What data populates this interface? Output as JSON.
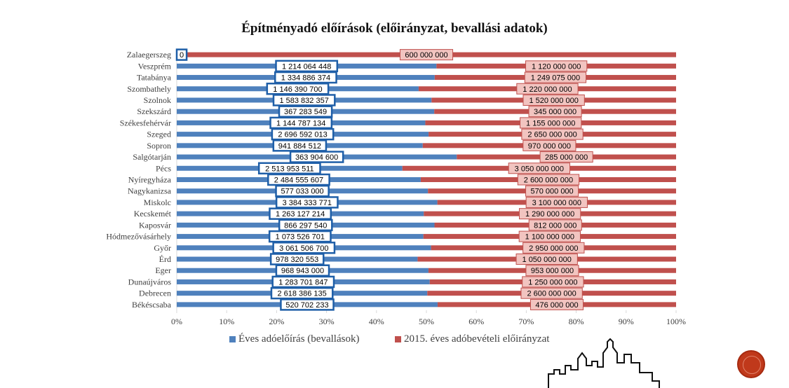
{
  "chart_data": {
    "type": "bar",
    "stacked_percent": true,
    "orientation": "horizontal",
    "title": "Építményadó előírások (előirányzat, bevallási adatok)",
    "categories": [
      "Zalaegerszeg",
      "Veszprém",
      "Tatabánya",
      "Szombathely",
      "Szolnok",
      "Szekszárd",
      "Székesfehérvár",
      "Szeged",
      "Sopron",
      "Salgótarján",
      "Pécs",
      "Nyíregyháza",
      "Nagykanizsa",
      "Miskolc",
      "Kecskemét",
      "Kaposvár",
      "Hódmezővásárhely",
      "Győr",
      "Érd",
      "Eger",
      "Dunaújváros",
      "Debrecen",
      "Békéscsaba"
    ],
    "series": [
      {
        "name": "Éves adóelőírás (bevallások)",
        "color": "#4f81bd",
        "values": [
          0,
          1214064448,
          1334886374,
          1146390700,
          1583832357,
          367283549,
          1144787134,
          2696592013,
          941884512,
          363904600,
          2513953511,
          2484555607,
          577033000,
          3384333771,
          1263127214,
          866297540,
          1073526701,
          3061506700,
          978320553,
          968943000,
          1283701847,
          2618386135,
          520702233
        ],
        "labels": [
          "0",
          "1 214 064 448",
          "1 334 886 374",
          "1 146 390 700",
          "1 583 832 357",
          "367 283 549",
          "1 144 787 134",
          "2 696 592 013",
          "941 884 512",
          "363 904 600",
          "2 513 953 511",
          "2 484 555 607",
          "577 033 000",
          "3 384 333 771",
          "1 263 127 214",
          "866 297 540",
          "1 073 526 701",
          "3 061 506 700",
          "978 320 553",
          "968 943 000",
          "1 283 701 847",
          "2 618 386 135",
          "520 702 233"
        ]
      },
      {
        "name": "2015. éves adóbevételi előirányzat",
        "color": "#c0504d",
        "values": [
          600000000,
          1120000000,
          1249075000,
          1220000000,
          1520000000,
          345000000,
          1155000000,
          2650000000,
          970000000,
          285000000,
          3050000000,
          2600000000,
          570000000,
          3100000000,
          1290000000,
          812000000,
          1100000000,
          2950000000,
          1050000000,
          953000000,
          1250000000,
          2600000000,
          476000000
        ],
        "labels": [
          "600 000 000",
          "1 120 000 000",
          "1 249 075 000",
          "1 220 000 000",
          "1 520 000 000",
          "345 000 000",
          "1 155 000 000",
          "2 650 000 000",
          "970 000 000",
          "285 000 000",
          "3 050 000 000",
          "2 600 000 000",
          "570 000 000",
          "3 100 000 000",
          "1 290 000 000",
          "812 000 000",
          "1 100 000 000",
          "2 950 000 000",
          "1 050 000 000",
          "953 000 000",
          "1 250 000 000",
          "2 600 000 000",
          "476 000 000"
        ]
      }
    ],
    "xticks": [
      "0%",
      "10%",
      "20%",
      "30%",
      "40%",
      "50%",
      "60%",
      "70%",
      "80%",
      "90%",
      "100%"
    ],
    "xlim": [
      0,
      100
    ],
    "legend_position": "bottom",
    "grid": false
  },
  "colors": {
    "blue": "#4f81bd",
    "red": "#c0504d",
    "blue_label_border": "#1f5fa8",
    "red_label_fill": "#f2c4c0",
    "red_label_border": "#c0504d"
  }
}
